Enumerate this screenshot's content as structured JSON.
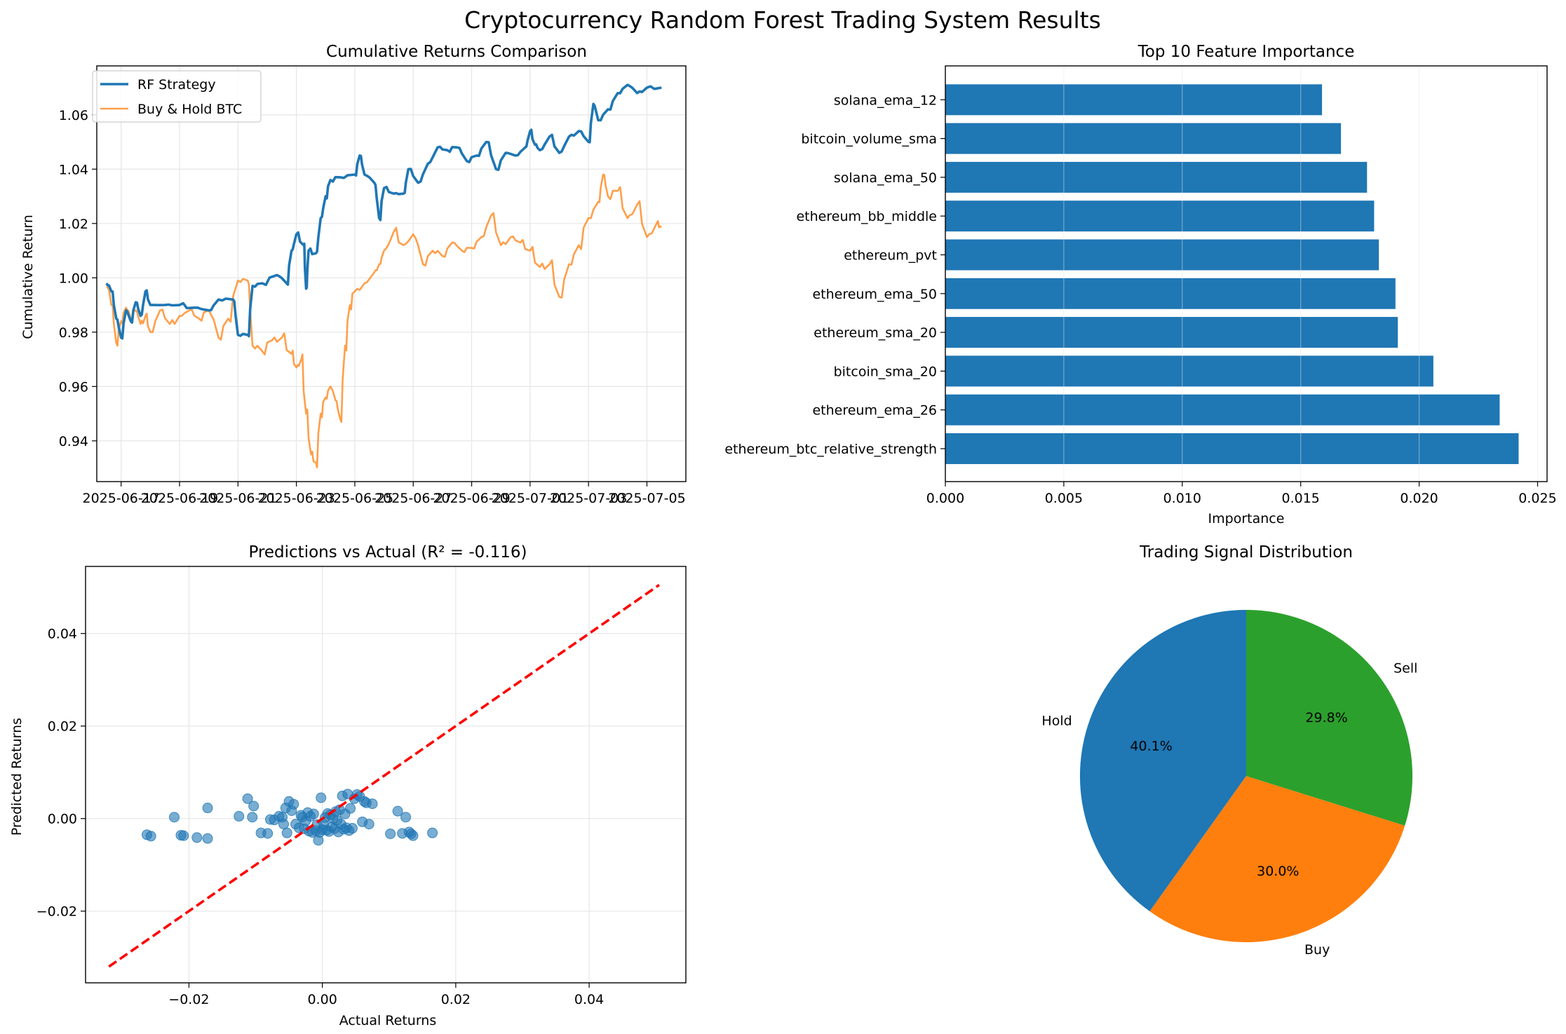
{
  "figure": {
    "title": "Cryptocurrency Random Forest Trading System Results"
  },
  "colors": {
    "blue": "#1f77b4",
    "orange": "#ff7f0e",
    "green": "#2ca02c",
    "red": "#ff0000",
    "grid": "#e6e6e6"
  },
  "chart_data": [
    {
      "type": "line",
      "title": "Cumulative Returns Comparison",
      "xlabel": "",
      "ylabel": "Cumulative Return",
      "x_ticks": [
        "2025-06-17",
        "2025-06-19",
        "2025-06-21",
        "2025-06-23",
        "2025-06-25",
        "2025-06-27",
        "2025-06-29",
        "2025-07-01",
        "2025-07-03",
        "2025-07-05"
      ],
      "y_ticks": [
        "0.94",
        "0.96",
        "0.98",
        "1.00",
        "1.02",
        "1.04",
        "1.06"
      ],
      "xlim": [
        "2025-06-16T04:00",
        "2025-07-06T08:00"
      ],
      "ylim": [
        0.925,
        1.078
      ],
      "grid": true,
      "legend": "upper left",
      "series": [
        {
          "name": "RF Strategy",
          "color": "#1f77b4",
          "points": [
            [
              "2025-06-16T12:00",
              0.998
            ],
            [
              "2025-06-16T16:00",
              0.995
            ],
            [
              "2025-06-16T20:00",
              0.985
            ],
            [
              "2025-06-17T00:00",
              0.978
            ],
            [
              "2025-06-17T04:00",
              0.988
            ],
            [
              "2025-06-17T08:00",
              0.984
            ],
            [
              "2025-06-17T12:00",
              0.991
            ],
            [
              "2025-06-17T16:00",
              0.986
            ],
            [
              "2025-06-17T20:00",
              0.995
            ],
            [
              "2025-06-18T00:00",
              0.99
            ],
            [
              "2025-06-18T12:00",
              0.99
            ],
            [
              "2025-06-19T00:00",
              0.99
            ],
            [
              "2025-06-19T12:00",
              0.989
            ],
            [
              "2025-06-20T00:00",
              0.988
            ],
            [
              "2025-06-20T08:00",
              0.992
            ],
            [
              "2025-06-20T20:00",
              0.992
            ],
            [
              "2025-06-21T00:00",
              0.979
            ],
            [
              "2025-06-21T08:00",
              0.979
            ],
            [
              "2025-06-21T12:00",
              0.997
            ],
            [
              "2025-06-21T20:00",
              0.998
            ],
            [
              "2025-06-22T08:00",
              1.001
            ],
            [
              "2025-06-22T16:00",
              0.998
            ],
            [
              "2025-06-22T20:00",
              1.01
            ],
            [
              "2025-06-23T00:00",
              1.016
            ],
            [
              "2025-06-23T06:00",
              1.012
            ],
            [
              "2025-06-23T08:00",
              0.996
            ],
            [
              "2025-06-23T10:00",
              1.01
            ],
            [
              "2025-06-23T16:00",
              1.009
            ],
            [
              "2025-06-23T20:00",
              1.022
            ],
            [
              "2025-06-24T00:00",
              1.03
            ],
            [
              "2025-06-24T04:00",
              1.036
            ],
            [
              "2025-06-24T12:00",
              1.037
            ],
            [
              "2025-06-25T00:00",
              1.038
            ],
            [
              "2025-06-25T04:00",
              1.045
            ],
            [
              "2025-06-25T08:00",
              1.038
            ],
            [
              "2025-06-25T16:00",
              1.035
            ],
            [
              "2025-06-25T20:00",
              1.022
            ],
            [
              "2025-06-26T00:00",
              1.033
            ],
            [
              "2025-06-26T08:00",
              1.031
            ],
            [
              "2025-06-26T16:00",
              1.031
            ],
            [
              "2025-06-26T20:00",
              1.04
            ],
            [
              "2025-06-27T04:00",
              1.035
            ],
            [
              "2025-06-27T12:00",
              1.042
            ],
            [
              "2025-06-27T20:00",
              1.048
            ],
            [
              "2025-06-28T04:00",
              1.047
            ],
            [
              "2025-06-28T12:00",
              1.048
            ],
            [
              "2025-06-28T20:00",
              1.043
            ],
            [
              "2025-06-29T04:00",
              1.045
            ],
            [
              "2025-06-29T12:00",
              1.05
            ],
            [
              "2025-06-29T20:00",
              1.04
            ],
            [
              "2025-06-30T04:00",
              1.046
            ],
            [
              "2025-06-30T12:00",
              1.045
            ],
            [
              "2025-06-30T20:00",
              1.048
            ],
            [
              "2025-07-01T00:00",
              1.054
            ],
            [
              "2025-07-01T04:00",
              1.049
            ],
            [
              "2025-07-01T08:00",
              1.047
            ],
            [
              "2025-07-01T16:00",
              1.052
            ],
            [
              "2025-07-02T00:00",
              1.046
            ],
            [
              "2025-07-02T08:00",
              1.052
            ],
            [
              "2025-07-02T16:00",
              1.054
            ],
            [
              "2025-07-03T00:00",
              1.05
            ],
            [
              "2025-07-03T04:00",
              1.064
            ],
            [
              "2025-07-03T08:00",
              1.058
            ],
            [
              "2025-07-03T16:00",
              1.062
            ],
            [
              "2025-07-04T00:00",
              1.068
            ],
            [
              "2025-07-04T08:00",
              1.071
            ],
            [
              "2025-07-04T16:00",
              1.068
            ],
            [
              "2025-07-05T00:00",
              1.07
            ],
            [
              "2025-07-05T12:00",
              1.07
            ]
          ]
        },
        {
          "name": "Buy & Hold BTC",
          "color": "#ff7f0e",
          "points": [
            [
              "2025-06-16T12:00",
              0.998
            ],
            [
              "2025-06-16T16:00",
              0.99
            ],
            [
              "2025-06-16T20:00",
              0.976
            ],
            [
              "2025-06-17T00:00",
              0.984
            ],
            [
              "2025-06-17T04:00",
              0.989
            ],
            [
              "2025-06-17T08:00",
              0.985
            ],
            [
              "2025-06-17T12:00",
              0.988
            ],
            [
              "2025-06-17T16:00",
              0.983
            ],
            [
              "2025-06-17T20:00",
              0.986
            ],
            [
              "2025-06-18T00:00",
              0.98
            ],
            [
              "2025-06-18T08:00",
              0.988
            ],
            [
              "2025-06-18T16:00",
              0.983
            ],
            [
              "2025-06-19T00:00",
              0.986
            ],
            [
              "2025-06-19T08:00",
              0.988
            ],
            [
              "2025-06-19T16:00",
              0.985
            ],
            [
              "2025-06-20T00:00",
              0.988
            ],
            [
              "2025-06-20T08:00",
              0.978
            ],
            [
              "2025-06-20T16:00",
              0.985
            ],
            [
              "2025-06-21T00:00",
              0.999
            ],
            [
              "2025-06-21T08:00",
              0.999
            ],
            [
              "2025-06-21T12:00",
              0.975
            ],
            [
              "2025-06-21T20:00",
              0.973
            ],
            [
              "2025-06-22T04:00",
              0.977
            ],
            [
              "2025-06-22T12:00",
              0.978
            ],
            [
              "2025-06-22T20:00",
              0.972
            ],
            [
              "2025-06-23T00:00",
              0.967
            ],
            [
              "2025-06-23T04:00",
              0.97
            ],
            [
              "2025-06-23T08:00",
              0.95
            ],
            [
              "2025-06-23T12:00",
              0.935
            ],
            [
              "2025-06-23T16:00",
              0.932
            ],
            [
              "2025-06-23T20:00",
              0.95
            ],
            [
              "2025-06-24T00:00",
              0.956
            ],
            [
              "2025-06-24T04:00",
              0.96
            ],
            [
              "2025-06-24T08:00",
              0.955
            ],
            [
              "2025-06-24T12:00",
              0.948
            ],
            [
              "2025-06-24T16:00",
              0.975
            ],
            [
              "2025-06-24T20:00",
              0.99
            ],
            [
              "2025-06-25T00:00",
              0.995
            ],
            [
              "2025-06-25T08:00",
              0.998
            ],
            [
              "2025-06-25T16:00",
              1.002
            ],
            [
              "2025-06-25T20:00",
              1.005
            ],
            [
              "2025-06-26T00:00",
              1.01
            ],
            [
              "2025-06-26T08:00",
              1.017
            ],
            [
              "2025-06-26T16:00",
              1.012
            ],
            [
              "2025-06-27T00:00",
              1.016
            ],
            [
              "2025-06-27T08:00",
              1.005
            ],
            [
              "2025-06-27T16:00",
              1.01
            ],
            [
              "2025-06-28T00:00",
              1.008
            ],
            [
              "2025-06-28T08:00",
              1.013
            ],
            [
              "2025-06-28T16:00",
              1.01
            ],
            [
              "2025-06-29T00:00",
              1.011
            ],
            [
              "2025-06-29T08:00",
              1.015
            ],
            [
              "2025-06-29T16:00",
              1.023
            ],
            [
              "2025-06-30T00:00",
              1.012
            ],
            [
              "2025-06-30T08:00",
              1.015
            ],
            [
              "2025-06-30T16:00",
              1.013
            ],
            [
              "2025-07-01T00:00",
              1.01
            ],
            [
              "2025-07-01T08:00",
              1.004
            ],
            [
              "2025-07-01T16:00",
              1.005
            ],
            [
              "2025-07-02T00:00",
              0.993
            ],
            [
              "2025-07-02T08:00",
              1.005
            ],
            [
              "2025-07-02T16:00",
              1.012
            ],
            [
              "2025-07-03T00:00",
              1.022
            ],
            [
              "2025-07-03T08:00",
              1.028
            ],
            [
              "2025-07-03T12:00",
              1.038
            ],
            [
              "2025-07-03T16:00",
              1.03
            ],
            [
              "2025-07-04T00:00",
              1.032
            ],
            [
              "2025-07-04T08:00",
              1.022
            ],
            [
              "2025-07-04T16:00",
              1.027
            ],
            [
              "2025-07-05T00:00",
              1.015
            ],
            [
              "2025-07-05T08:00",
              1.02
            ],
            [
              "2025-07-05T12:00",
              1.019
            ]
          ]
        }
      ]
    },
    {
      "type": "bar",
      "orientation": "horizontal",
      "title": "Top 10 Feature Importance",
      "xlabel": "Importance",
      "ylabel": "",
      "x_ticks": [
        "0.000",
        "0.005",
        "0.010",
        "0.015",
        "0.020",
        "0.025"
      ],
      "xlim": [
        0,
        0.0254
      ],
      "grid": true,
      "color": "#1f77b4",
      "categories": [
        "ethereum_btc_relative_strength",
        "ethereum_ema_26",
        "bitcoin_sma_20",
        "ethereum_sma_20",
        "ethereum_ema_50",
        "ethereum_pvt",
        "ethereum_bb_middle",
        "solana_ema_50",
        "bitcoin_volume_sma",
        "solana_ema_12"
      ],
      "values": [
        0.0242,
        0.0234,
        0.0206,
        0.0191,
        0.019,
        0.0183,
        0.0181,
        0.0178,
        0.0167,
        0.0159
      ]
    },
    {
      "type": "scatter",
      "title": "Predictions vs Actual (R² = -0.116)",
      "xlabel": "Actual Returns",
      "ylabel": "Predicted Returns",
      "x_ticks": [
        "−0.02",
        "0.00",
        "0.02",
        "0.04"
      ],
      "y_ticks": [
        "−0.02",
        "0.00",
        "0.02",
        "0.04"
      ],
      "xlim": [
        -0.0355,
        0.0545
      ],
      "ylim": [
        -0.0355,
        0.0545
      ],
      "grid": true,
      "color": "#1f77b4",
      "reference_line": {
        "from": [
          -0.032,
          -0.032
        ],
        "to": [
          0.0505,
          0.0505
        ],
        "color": "#ff0000"
      },
      "points": [
        [
          -0.0263,
          -0.0035
        ],
        [
          -0.0257,
          -0.0038
        ],
        [
          -0.0222,
          0.0003
        ],
        [
          -0.0212,
          -0.0036
        ],
        [
          -0.0208,
          -0.0037
        ],
        [
          -0.0188,
          -0.0041
        ],
        [
          -0.0172,
          -0.0043
        ],
        [
          -0.0172,
          0.0023
        ],
        [
          -0.0125,
          0.0005
        ],
        [
          -0.0112,
          0.0043
        ],
        [
          -0.0105,
          0.0003
        ],
        [
          -0.0103,
          0.0027
        ],
        [
          -0.0092,
          -0.0031
        ],
        [
          -0.0082,
          -0.0032
        ],
        [
          -0.0078,
          -0.0002
        ],
        [
          -0.0072,
          -0.0003
        ],
        [
          -0.0065,
          0.0005
        ],
        [
          -0.006,
          0.0003
        ],
        [
          -0.0058,
          -0.0012
        ],
        [
          -0.0055,
          0.0023
        ],
        [
          -0.0053,
          -0.0031
        ],
        [
          -0.005,
          0.0037
        ],
        [
          -0.0046,
          0.0017
        ],
        [
          -0.0043,
          0.0031
        ],
        [
          -0.004,
          -0.0012
        ],
        [
          -0.0035,
          -0.002
        ],
        [
          -0.0032,
          0.0007
        ],
        [
          -0.003,
          0.0003
        ],
        [
          -0.0027,
          -0.0022
        ],
        [
          -0.0025,
          -0.0005
        ],
        [
          -0.0022,
          0.0013
        ],
        [
          -0.002,
          -0.0027
        ],
        [
          -0.0018,
          0.0005
        ],
        [
          -0.0015,
          -0.003
        ],
        [
          -0.0013,
          0.001
        ],
        [
          -0.001,
          -0.0026
        ],
        [
          -0.0008,
          -0.0013
        ],
        [
          -0.0006,
          -0.0047
        ],
        [
          -0.0004,
          -0.003
        ],
        [
          -0.0002,
          0.0045
        ],
        [
          0.0,
          -0.0024
        ],
        [
          0.0002,
          -0.0012
        ],
        [
          0.0004,
          0.0002
        ],
        [
          0.0006,
          -0.0025
        ],
        [
          0.0008,
          0.0011
        ],
        [
          0.001,
          -0.0028
        ],
        [
          0.0012,
          0.0008
        ],
        [
          0.0014,
          -0.0018
        ],
        [
          0.0016,
          0.0
        ],
        [
          0.0018,
          -0.0022
        ],
        [
          0.002,
          0.0015
        ],
        [
          0.0022,
          -0.0004
        ],
        [
          0.0024,
          -0.0029
        ],
        [
          0.0026,
          0.0019
        ],
        [
          0.0028,
          -0.0012
        ],
        [
          0.003,
          0.0049
        ],
        [
          0.0032,
          -0.0023
        ],
        [
          0.0034,
          0.001
        ],
        [
          0.0036,
          -0.002
        ],
        [
          0.0038,
          0.0053
        ],
        [
          0.004,
          -0.0026
        ],
        [
          0.0042,
          0.0022
        ],
        [
          0.0045,
          -0.0021
        ],
        [
          0.0048,
          0.0043
        ],
        [
          0.0052,
          0.0052
        ],
        [
          0.0056,
          0.0048
        ],
        [
          0.006,
          -0.0007
        ],
        [
          0.0063,
          0.0037
        ],
        [
          0.0066,
          0.0034
        ],
        [
          0.007,
          -0.0012
        ],
        [
          0.0075,
          0.0032
        ],
        [
          0.0102,
          -0.0033
        ],
        [
          0.0113,
          0.0016
        ],
        [
          0.012,
          -0.0032
        ],
        [
          0.0125,
          0.0003
        ],
        [
          0.013,
          -0.0029
        ],
        [
          0.0133,
          -0.0033
        ],
        [
          0.0136,
          -0.0037
        ],
        [
          0.0165,
          -0.0031
        ]
      ]
    },
    {
      "type": "pie",
      "title": "Trading Signal Distribution",
      "start_angle_deg": 90,
      "slices": [
        {
          "label": "Sell",
          "value": 29.8,
          "pct_label": "29.8%",
          "color": "#2ca02c"
        },
        {
          "label": "Hold",
          "value": 40.1,
          "pct_label": "40.1%",
          "color": "#1f77b4"
        },
        {
          "label": "Buy",
          "value": 30.0,
          "pct_label": "30.0%",
          "color": "#ff7f0e"
        }
      ]
    }
  ]
}
